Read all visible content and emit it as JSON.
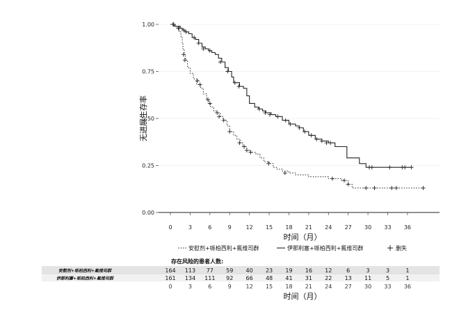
{
  "chart_data": {
    "type": "line",
    "subtype": "kaplan-meier",
    "title": "",
    "xlabel": "时间（月）",
    "ylabel": "无进展生存率",
    "xlim": [
      -2,
      40
    ],
    "ylim": [
      0,
      1
    ],
    "x_ticks": [
      0,
      3,
      6,
      9,
      12,
      15,
      18,
      21,
      24,
      27,
      30,
      33,
      36
    ],
    "y_ticks": [
      0.0,
      0.25,
      0.5,
      0.75,
      1.0
    ],
    "y_tick_labels": [
      "0.00",
      "0.25",
      "0.50",
      "0.75",
      "1.00"
    ],
    "legend_position": "bottom",
    "legend": {
      "items": [
        {
          "label": "安慰剂+哌柏西利+氟维司群",
          "style": "dotted"
        },
        {
          "label": "伊那利塞+哌柏西利+氟维司群",
          "style": "solid"
        },
        {
          "label": "删失",
          "style": "plus"
        }
      ]
    },
    "series": [
      {
        "name": "安慰剂+哌柏西利+氟维司群",
        "style": "dotted",
        "x": [
          0,
          0.6,
          1.0,
          1.3,
          1.6,
          1.8,
          1.9,
          2.1,
          2.3,
          2.6,
          3.0,
          3.5,
          4.0,
          4.6,
          5.0,
          5.5,
          5.8,
          6.1,
          6.6,
          7.0,
          7.6,
          8.0,
          8.6,
          9.0,
          9.6,
          10.1,
          10.6,
          11.0,
          11.6,
          12.1,
          13.0,
          13.6,
          14.2,
          15.0,
          15.6,
          16.2,
          17.0,
          18.0,
          19.0,
          20.0,
          21.0,
          22.0,
          23.0,
          24.0,
          25.0,
          26.0,
          27.0,
          27.6
        ],
        "y": [
          1.0,
          0.99,
          0.98,
          0.96,
          0.93,
          0.9,
          0.87,
          0.84,
          0.81,
          0.77,
          0.74,
          0.71,
          0.68,
          0.66,
          0.63,
          0.6,
          0.58,
          0.56,
          0.54,
          0.53,
          0.51,
          0.49,
          0.46,
          0.43,
          0.41,
          0.39,
          0.37,
          0.35,
          0.33,
          0.32,
          0.31,
          0.29,
          0.27,
          0.26,
          0.24,
          0.23,
          0.22,
          0.21,
          0.2,
          0.2,
          0.19,
          0.19,
          0.19,
          0.18,
          0.18,
          0.17,
          0.15,
          0.13
        ],
        "end_x": 38.5,
        "censor_x": [
          0.5,
          1.2,
          2.0,
          2.2,
          4.1,
          4.5,
          5.7,
          6.0,
          7.1,
          7.4,
          8.1,
          9.0,
          10.5,
          11.2,
          11.6,
          12.2,
          14.9,
          17.4,
          24.6,
          26.4,
          27.0,
          29.7,
          31.0,
          33.6,
          34.3,
          38.4
        ],
        "censor_y": [
          1.0,
          0.98,
          0.84,
          0.81,
          0.7,
          0.68,
          0.6,
          0.58,
          0.53,
          0.51,
          0.49,
          0.43,
          0.37,
          0.35,
          0.33,
          0.32,
          0.26,
          0.21,
          0.18,
          0.17,
          0.15,
          0.13,
          0.13,
          0.13,
          0.13,
          0.13
        ]
      },
      {
        "name": "伊那利塞+哌柏西利+氟维司群",
        "style": "solid",
        "x": [
          0,
          0.7,
          1.5,
          1.8,
          2.2,
          2.8,
          3.3,
          3.8,
          4.3,
          4.8,
          5.3,
          5.8,
          6.3,
          6.8,
          7.3,
          7.8,
          8.3,
          8.8,
          9.3,
          9.6,
          10.5,
          11.1,
          11.6,
          12.0,
          12.8,
          13.4,
          14.0,
          14.5,
          15.3,
          16.0,
          17.0,
          18.0,
          19.0,
          19.6,
          20.2,
          21.0,
          22.0,
          23.0,
          24.0,
          25.0,
          26.8,
          28.7,
          29.7
        ],
        "y": [
          1.0,
          0.99,
          0.98,
          0.97,
          0.96,
          0.95,
          0.93,
          0.92,
          0.9,
          0.88,
          0.87,
          0.86,
          0.85,
          0.84,
          0.82,
          0.8,
          0.77,
          0.75,
          0.72,
          0.69,
          0.67,
          0.66,
          0.62,
          0.58,
          0.56,
          0.55,
          0.54,
          0.53,
          0.52,
          0.51,
          0.49,
          0.47,
          0.46,
          0.45,
          0.43,
          0.41,
          0.39,
          0.38,
          0.37,
          0.35,
          0.29,
          0.26,
          0.24
        ],
        "end_x": 36.6,
        "censor_x": [
          0.4,
          1.3,
          2.0,
          2.4,
          3.6,
          4.3,
          5.0,
          6.0,
          7.6,
          8.7,
          9.8,
          10.4,
          13.5,
          14.4,
          15.1,
          16.3,
          17.5,
          18.2,
          19.6,
          20.4,
          21.4,
          22.2,
          23.0,
          23.7,
          24.3,
          30.2,
          30.6,
          33.3,
          35.2,
          35.6,
          36.6
        ],
        "censor_y": [
          1.0,
          0.98,
          0.97,
          0.96,
          0.93,
          0.9,
          0.87,
          0.86,
          0.8,
          0.75,
          0.69,
          0.67,
          0.55,
          0.53,
          0.52,
          0.51,
          0.49,
          0.47,
          0.45,
          0.43,
          0.41,
          0.39,
          0.38,
          0.37,
          0.37,
          0.24,
          0.24,
          0.24,
          0.24,
          0.24,
          0.24
        ]
      }
    ],
    "risk_table": {
      "title": "存在风险的患者人数:",
      "times": [
        0,
        3,
        6,
        9,
        12,
        15,
        18,
        21,
        24,
        27,
        30,
        33,
        36
      ],
      "rows": [
        {
          "label": "安慰剂+哌柏西利+氟维司群",
          "counts": [
            "164",
            "113",
            "77",
            "59",
            "40",
            "23",
            "19",
            "16",
            "12",
            "6",
            "3",
            "3",
            "1"
          ]
        },
        {
          "label": "伊那利塞+哌柏西利+氟维司群",
          "counts": [
            "161",
            "134",
            "111",
            "92",
            "66",
            "48",
            "41",
            "31",
            "22",
            "13",
            "11",
            "5",
            "1"
          ]
        }
      ],
      "xlabel": "时间（月）"
    }
  }
}
